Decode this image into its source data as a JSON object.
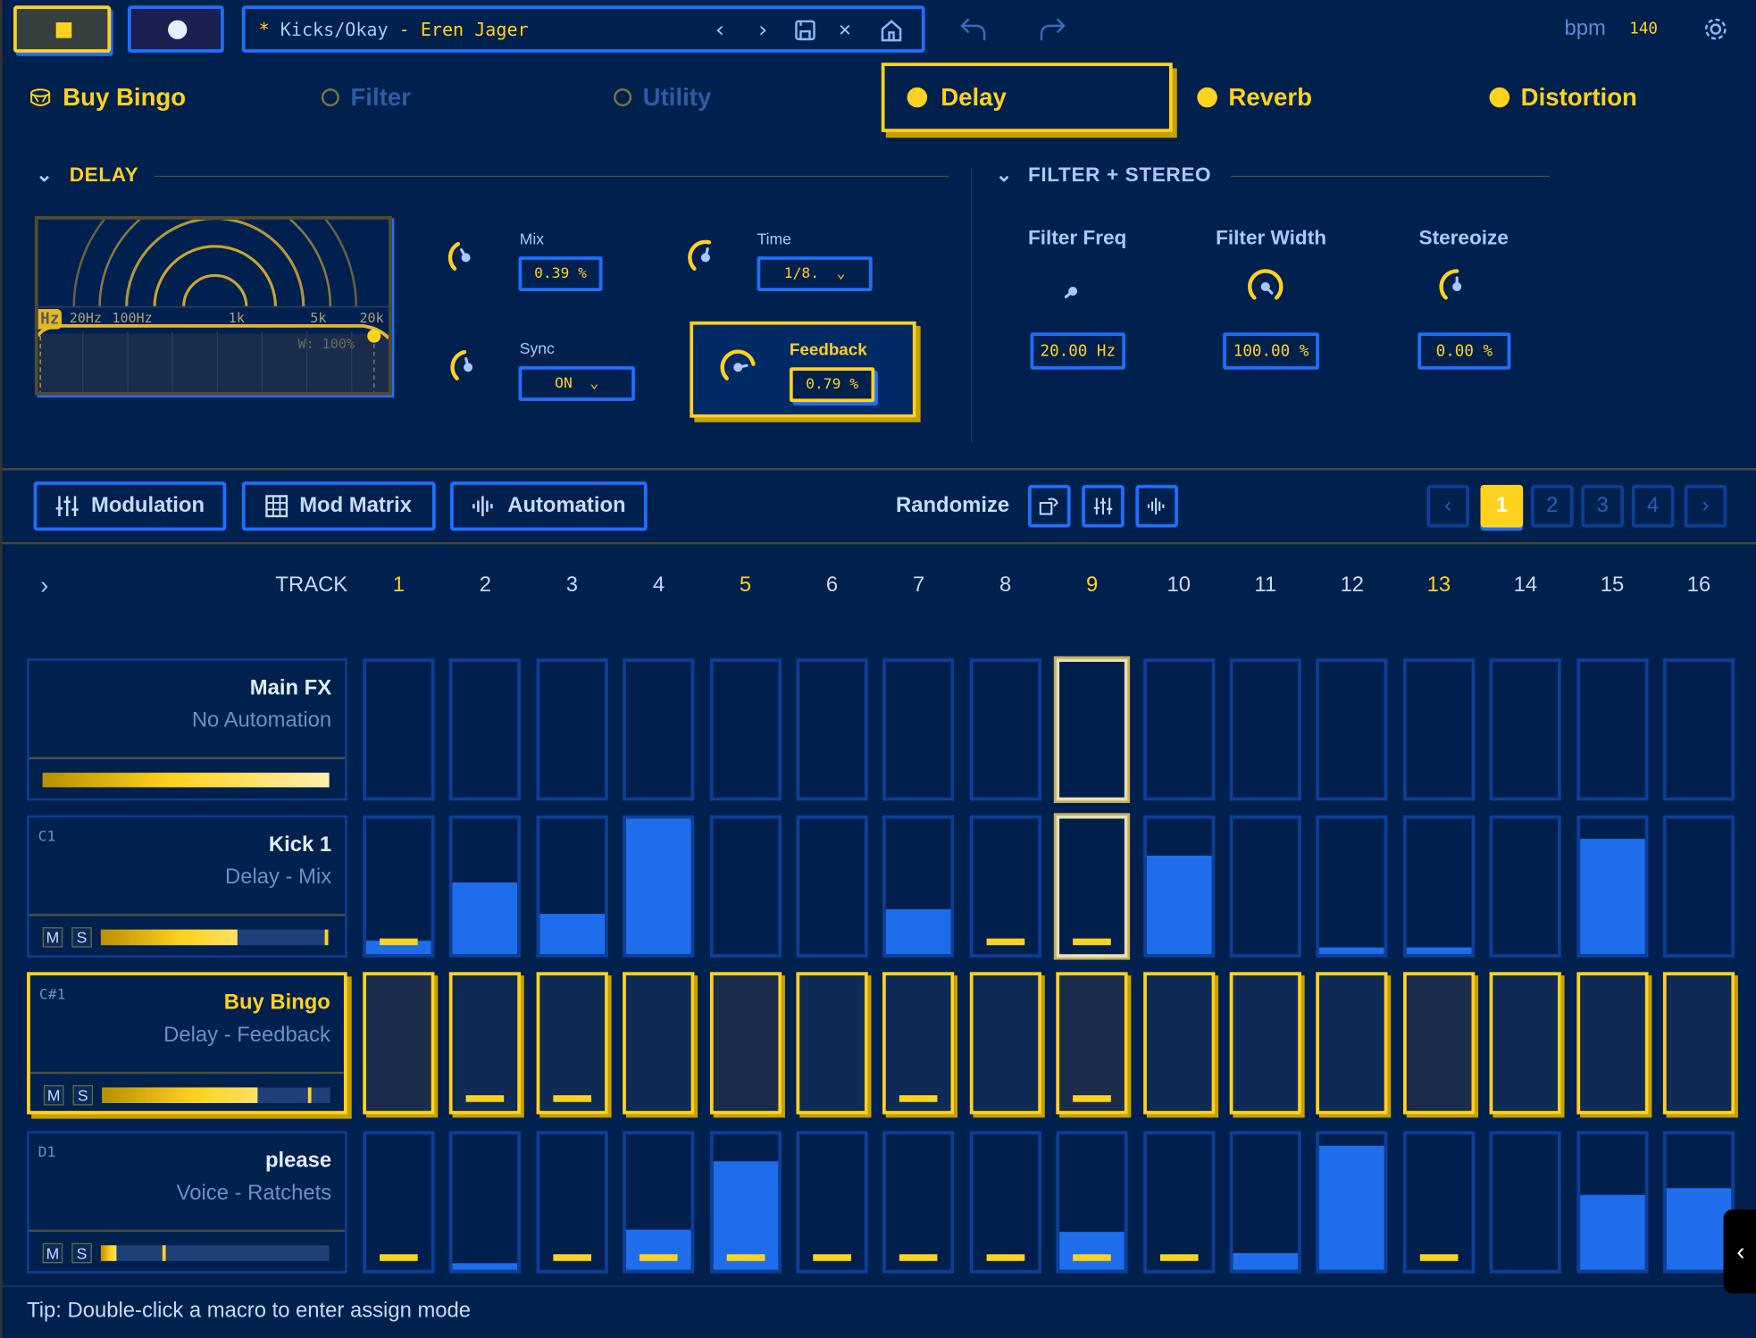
{
  "topbar": {
    "path_prefix": "*",
    "path_left": "Kicks/Okay",
    "path_sep": " - ",
    "path_right": "Eren Jager",
    "bpm_label": "bpm",
    "bpm_value": "140"
  },
  "tabs": [
    {
      "label": "Buy Bingo",
      "state": "icon"
    },
    {
      "label": "Filter",
      "state": "off"
    },
    {
      "label": "Utility",
      "state": "off"
    },
    {
      "label": "Delay",
      "state": "active"
    },
    {
      "label": "Reverb",
      "state": "on"
    },
    {
      "label": "Distortion",
      "state": "on"
    }
  ],
  "delay": {
    "title": "DELAY",
    "graph": {
      "badge": "Hz",
      "ticks": [
        "20Hz",
        "100Hz",
        "1k",
        "5k",
        "20k"
      ],
      "width_label": "W: 100%"
    },
    "mix": {
      "label": "Mix",
      "value": "0.39 %",
      "knob": 0.39
    },
    "time": {
      "label": "Time",
      "value": "1/8.",
      "knob": 0.55
    },
    "sync": {
      "label": "Sync",
      "value": "ON",
      "knob": 0.45
    },
    "feedback": {
      "label": "Feedback",
      "value": "0.79 %",
      "knob": 0.79
    }
  },
  "filter": {
    "title": "FILTER + STEREO",
    "freq": {
      "label": "Filter Freq",
      "value": "20.00 Hz",
      "knob": 0.0
    },
    "width": {
      "label": "Filter Width",
      "value": "100.00 %",
      "knob": 1.0
    },
    "stereo": {
      "label": "Stereoize",
      "value": "0.00 %",
      "knob": 0.5
    }
  },
  "toolbar": {
    "modulation": "Modulation",
    "mod_matrix": "Mod Matrix",
    "automation": "Automation",
    "randomize": "Randomize",
    "pages": [
      "1",
      "2",
      "3",
      "4"
    ],
    "active_page": "1"
  },
  "grid": {
    "track_label": "TRACK",
    "steps": [
      "1",
      "2",
      "3",
      "4",
      "5",
      "6",
      "7",
      "8",
      "9",
      "10",
      "11",
      "12",
      "13",
      "14",
      "15",
      "16"
    ],
    "accent_steps": [
      1,
      5,
      9,
      13
    ],
    "current_step": 9,
    "rows": [
      {
        "note": "",
        "name": "Main FX",
        "sub": "No Automation",
        "level": 1.0,
        "cursor": null,
        "type": "main",
        "fills": [
          0,
          0,
          0,
          0,
          0,
          0,
          0,
          0,
          0,
          0,
          0,
          0,
          0,
          0,
          0,
          0
        ],
        "marks": []
      },
      {
        "note": "C1",
        "name": "Kick 1",
        "sub": "Delay - Mix",
        "level": 0.6,
        "cursor": 0.98,
        "type": "normal",
        "fills": [
          0.1,
          0.53,
          0.3,
          1,
          0,
          0,
          0.33,
          0,
          0,
          0.73,
          0,
          0.05,
          0.05,
          0,
          0.85,
          0
        ],
        "marks": [
          1,
          8,
          9
        ]
      },
      {
        "note": "C#1",
        "name": "Buy Bingo",
        "sub": "Delay - Feedback",
        "level": 0.68,
        "cursor": 0.9,
        "type": "selected",
        "fills": [
          0,
          0,
          0,
          0,
          0,
          0,
          0,
          0,
          0,
          0,
          0,
          0,
          0,
          0,
          0,
          0
        ],
        "marks": [
          2,
          3,
          7,
          9
        ]
      },
      {
        "note": "D1",
        "name": "please",
        "sub": "Voice - Ratchets",
        "level": 0.07,
        "cursor": 0.27,
        "type": "normal",
        "fills": [
          0,
          0.05,
          0,
          0.3,
          0.8,
          0,
          0,
          0,
          0.28,
          0,
          0.12,
          0.92,
          0,
          0,
          0.55,
          0.6
        ],
        "marks": [
          1,
          3,
          4,
          5,
          6,
          7,
          8,
          9,
          10,
          13
        ]
      }
    ]
  },
  "tip": "Tip: Double-click a macro to enter assign mode",
  "colors": {
    "bg": "#00204d",
    "accent": "#ffd21f",
    "blue": "#1f6fff"
  }
}
